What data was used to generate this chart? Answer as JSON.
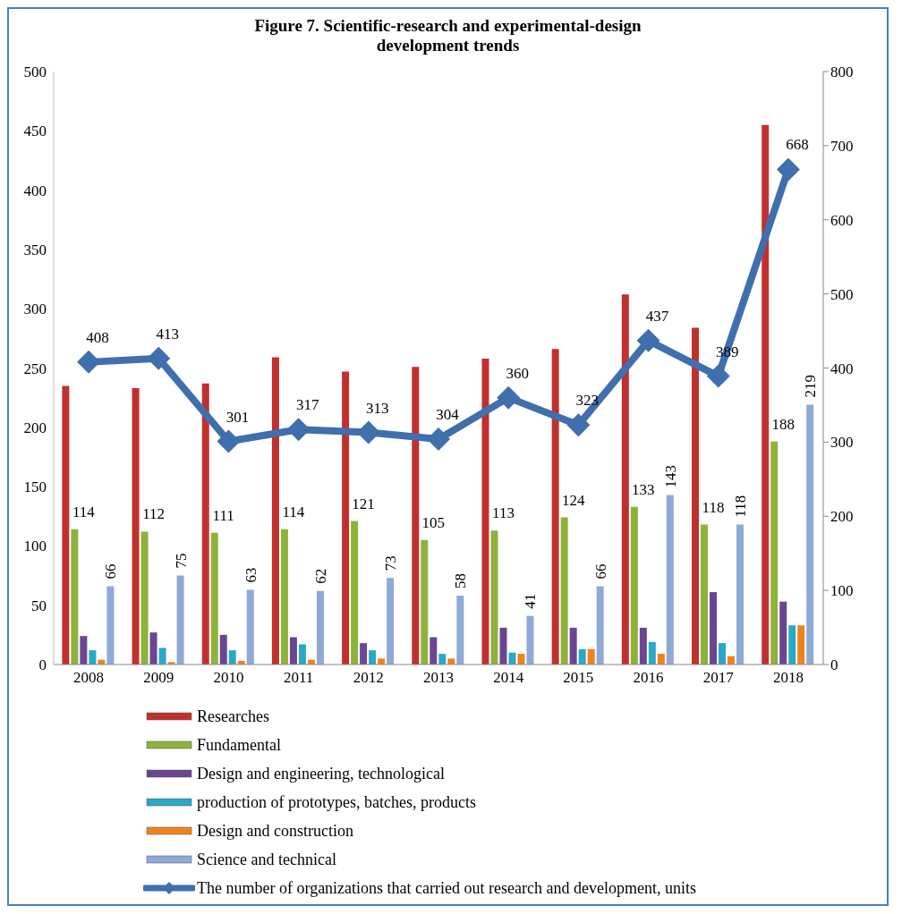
{
  "chart_data": {
    "type": "bar",
    "title": "Figure 7. Scientific-research and experimental-design development trends",
    "categories": [
      "2008",
      "2009",
      "2010",
      "2011",
      "2012",
      "2013",
      "2014",
      "2015",
      "2016",
      "2017",
      "2018"
    ],
    "series": [
      {
        "name": "Researches",
        "color": "#c0302f",
        "values": [
          235,
          233,
          237,
          259,
          247,
          251,
          258,
          266,
          312,
          284,
          455
        ]
      },
      {
        "name": "Fundamental",
        "color": "#8db33a",
        "values": [
          114,
          112,
          111,
          114,
          121,
          105,
          113,
          124,
          133,
          118,
          188
        ],
        "value_labels": [
          "114",
          "112",
          "111",
          "114",
          "121",
          "105",
          "113",
          "124",
          "133",
          "118",
          "188"
        ]
      },
      {
        "name": "Design and engineering,  technological",
        "color": "#6a4592",
        "values": [
          24,
          27,
          25,
          23,
          18,
          23,
          31,
          31,
          31,
          61,
          53
        ]
      },
      {
        "name": "production of prototypes, batches, products",
        "color": "#2aa9c6",
        "values": [
          12,
          14,
          12,
          17,
          12,
          9,
          10,
          13,
          19,
          18,
          33
        ]
      },
      {
        "name": "Design and construction",
        "color": "#f0821e",
        "values": [
          4,
          2,
          3,
          4,
          5,
          5,
          9,
          13,
          9,
          7,
          33
        ]
      },
      {
        "name": "Science and technical",
        "color": "#8eaad6",
        "values": [
          66,
          75,
          63,
          62,
          73,
          58,
          41,
          66,
          143,
          118,
          219
        ],
        "value_labels": [
          "66",
          "75",
          "63",
          "62",
          "73",
          "58",
          "41",
          "66",
          "143",
          "118",
          "219"
        ]
      },
      {
        "name": "The number of organizations that carried out research and development, units",
        "type": "line",
        "axis": "y2",
        "color": "#3f6fad",
        "values": [
          408,
          413,
          301,
          317,
          313,
          304,
          360,
          323,
          437,
          389,
          668
        ],
        "value_labels": [
          "408",
          "413",
          "301",
          "317",
          "313",
          "304",
          "360",
          "323",
          "437",
          "389",
          "668"
        ]
      }
    ],
    "ylim": [
      0,
      500
    ],
    "yticks": [
      0,
      50,
      100,
      150,
      200,
      250,
      300,
      350,
      400,
      450,
      500
    ],
    "y2lim": [
      0,
      800
    ],
    "y2ticks": [
      0,
      100,
      200,
      300,
      400,
      500,
      600,
      700,
      800
    ],
    "marker": "diamond",
    "legend": "bottom",
    "grid": false
  }
}
